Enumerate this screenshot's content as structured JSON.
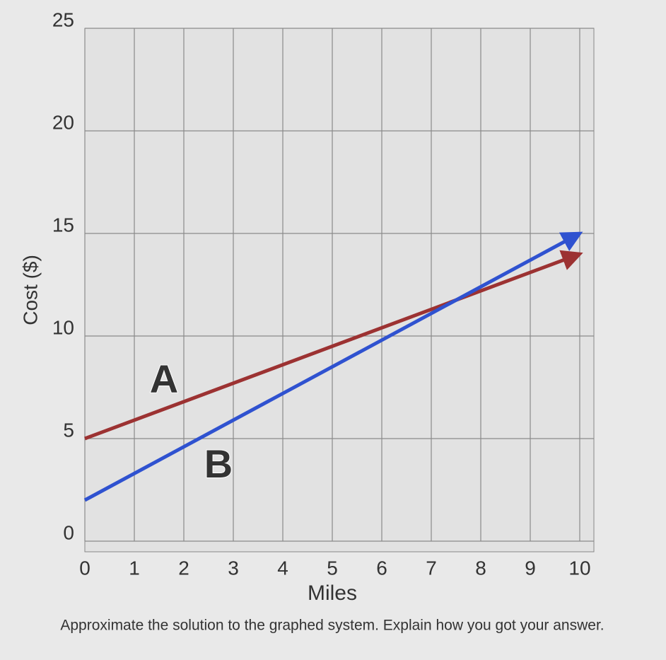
{
  "chart_data": {
    "type": "line",
    "x_label": "Miles",
    "y_label": "Cost ($)",
    "caption": "Approximate the solution to the graphed system. Explain how you got your answer.",
    "x": [
      0,
      10
    ],
    "series": [
      {
        "name": "A",
        "color": "#9c3232",
        "values": [
          5,
          14
        ]
      },
      {
        "name": "B",
        "color": "#2f52d0",
        "values": [
          2,
          15
        ]
      }
    ],
    "xlim": [
      0,
      10
    ],
    "ylim": [
      0,
      25
    ],
    "xticks": [
      0,
      1,
      2,
      3,
      4,
      5,
      6,
      7,
      8,
      9,
      10
    ],
    "yticks": [
      0,
      5,
      10,
      15,
      20,
      25
    ],
    "grid": true
  }
}
